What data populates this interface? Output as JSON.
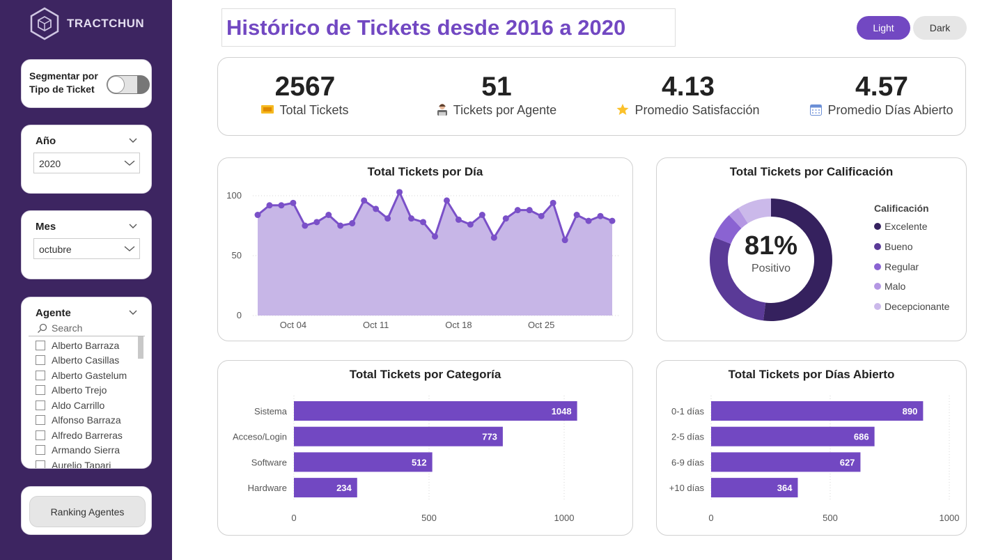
{
  "app": {
    "brand": "TRACTCHUN",
    "title": "Histórico de Tickets desde 2016 a 2020",
    "theme_buttons": [
      "Light",
      "Dark"
    ]
  },
  "sidebar": {
    "toggle_label": "Segmentar por Tipo de Ticket",
    "year": {
      "title": "Año",
      "value": "2020"
    },
    "month": {
      "title": "Mes",
      "value": "octubre"
    },
    "agent": {
      "title": "Agente",
      "search_placeholder": "Search",
      "items": [
        "Alberto Barraza",
        "Alberto Casillas",
        "Alberto Gastelum",
        "Alberto Trejo",
        "Aldo Carrillo",
        "Alfonso Barraza",
        "Alfredo Barreras",
        "Armando Sierra",
        "Aurelio Tapari"
      ]
    },
    "ranking_button": "Ranking Agentes"
  },
  "kpis": [
    {
      "value": "2567",
      "label": "Total Tickets",
      "icon": "ticket-icon"
    },
    {
      "value": "51",
      "label": "Tickets por Agente",
      "icon": "agent-icon"
    },
    {
      "value": "4.13",
      "label": "Promedio Satisfacción",
      "icon": "star-icon"
    },
    {
      "value": "4.57",
      "label": "Promedio Días Abierto",
      "icon": "calendar-icon"
    }
  ],
  "chart_data": [
    {
      "type": "area",
      "title": "Total Tickets por Día",
      "x_tick_labels": [
        "Oct 04",
        "Oct 11",
        "Oct 18",
        "Oct 25"
      ],
      "x_tick_days": [
        4,
        11,
        18,
        25
      ],
      "x_start_day": 1,
      "values": [
        84,
        92,
        92,
        94,
        75,
        78,
        84,
        75,
        77,
        96,
        89,
        81,
        103,
        81,
        78,
        66,
        96,
        80,
        76,
        84,
        65,
        81,
        88,
        88,
        83,
        94,
        63,
        84,
        79,
        83,
        79
      ],
      "yticks": [
        0,
        50,
        100
      ],
      "ylim": [
        0,
        100
      ],
      "color": "#7a50c8",
      "fill": "#c7b6e7"
    },
    {
      "type": "pie",
      "title": "Total Tickets por Calificación",
      "center_value": "81%",
      "center_label": "Positivo",
      "legend_title": "Calificación",
      "categories": [
        "Excelente",
        "Bueno",
        "Regular",
        "Malo",
        "Decepcionante"
      ],
      "values": [
        52,
        29,
        7,
        3,
        9
      ],
      "colors": [
        "#35215e",
        "#5a3a97",
        "#8a63d2",
        "#b497e3",
        "#cbb9ea"
      ]
    },
    {
      "type": "bar",
      "orientation": "horizontal",
      "title": "Total Tickets por Categoría",
      "categories": [
        "Sistema",
        "Acceso/Login",
        "Software",
        "Hardware"
      ],
      "values": [
        1048,
        773,
        512,
        234
      ],
      "xticks": [
        0,
        500,
        1000
      ],
      "xlim": [
        0,
        1000
      ],
      "color": "#7248c2"
    },
    {
      "type": "bar",
      "orientation": "horizontal",
      "title": "Total Tickets por Días Abierto",
      "categories": [
        "0-1 días",
        "2-5 días",
        "6-9 días",
        "+10 días"
      ],
      "values": [
        890,
        686,
        627,
        364
      ],
      "xticks": [
        0,
        500,
        1000
      ],
      "xlim": [
        0,
        1000
      ],
      "color": "#7248c2"
    }
  ]
}
